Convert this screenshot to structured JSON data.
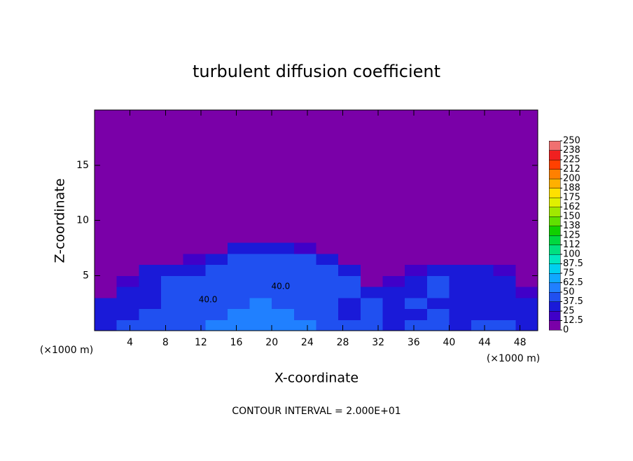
{
  "chart_data": {
    "type": "heatmap",
    "title": "turbulent diffusion coefficient",
    "xlabel": "X-coordinate",
    "ylabel": "Z-coordinate",
    "x_unit_left": "(×1000 m)",
    "x_unit_right": "(×1000 m)",
    "footer": "CONTOUR INTERVAL = 2.000E+01",
    "xlim": [
      0,
      50
    ],
    "ylim": [
      0,
      20
    ],
    "xticks": [
      4,
      8,
      12,
      16,
      20,
      24,
      28,
      32,
      36,
      40,
      44,
      48
    ],
    "yticks": [
      5,
      10,
      15
    ],
    "x_edges": [
      0,
      2.5,
      5,
      7.5,
      10,
      12.5,
      15,
      17.5,
      20,
      22.5,
      25,
      27.5,
      30,
      32.5,
      35,
      37.5,
      40,
      42.5,
      45,
      47.5,
      50
    ],
    "y_edges": [
      0,
      1,
      2,
      3,
      4,
      5,
      6,
      7,
      8,
      20
    ],
    "z": [
      [
        35,
        38,
        40,
        42,
        45,
        50,
        58,
        62,
        55,
        50,
        42,
        40,
        38,
        36,
        40,
        38,
        35,
        40,
        38,
        35
      ],
      [
        30,
        35,
        38,
        40,
        42,
        45,
        50,
        55,
        50,
        45,
        40,
        35,
        38,
        30,
        35,
        38,
        32,
        35,
        30,
        30
      ],
      [
        25,
        32,
        35,
        38,
        40,
        42,
        45,
        50,
        45,
        42,
        38,
        35,
        38,
        28,
        38,
        35,
        35,
        32,
        30,
        25
      ],
      [
        10,
        30,
        35,
        38,
        38,
        40,
        42,
        48,
        42,
        40,
        38,
        38,
        30,
        32,
        30,
        40,
        35,
        35,
        30,
        20
      ],
      [
        5,
        20,
        35,
        38,
        38,
        38,
        40,
        45,
        40,
        40,
        38,
        38,
        10,
        20,
        30,
        38,
        32,
        30,
        30,
        10
      ],
      [
        2,
        10,
        35,
        35,
        35,
        38,
        40,
        42,
        38,
        40,
        38,
        30,
        5,
        5,
        20,
        25,
        25,
        30,
        20,
        5
      ],
      [
        0,
        2,
        5,
        10,
        20,
        35,
        38,
        40,
        38,
        38,
        30,
        5,
        0,
        0,
        2,
        5,
        10,
        10,
        5,
        0
      ],
      [
        0,
        0,
        0,
        0,
        2,
        10,
        30,
        35,
        30,
        20,
        5,
        0,
        0,
        0,
        0,
        0,
        0,
        0,
        0,
        0
      ],
      [
        0,
        0,
        0,
        0,
        0,
        0,
        0,
        0,
        0,
        0,
        0,
        0,
        0,
        0,
        0,
        0,
        0,
        0,
        0,
        0
      ]
    ],
    "contour_labels": [
      {
        "x": 12.8,
        "y": 2.8,
        "label": "40.0"
      },
      {
        "x": 21,
        "y": 4,
        "label": "40.0"
      }
    ],
    "colorbar": {
      "ticks": [
        0,
        12.5,
        25,
        37.5,
        50,
        62.5,
        75,
        87.5,
        100,
        {
          "value": 112.5,
          "label": "112"
        },
        125,
        {
          "value": 137.5,
          "label": "138"
        },
        150,
        {
          "value": 162.5,
          "label": "162"
        },
        175,
        {
          "value": 187.5,
          "label": "188"
        },
        200,
        {
          "value": 212.5,
          "label": "212"
        },
        225,
        {
          "value": 237.5,
          "label": "238"
        },
        250
      ],
      "colors": [
        "#7a00a8",
        "#4000c8",
        "#1a1ad8",
        "#2050f0",
        "#2080ff",
        "#10a8ff",
        "#00d0f0",
        "#00e8c0",
        "#00e080",
        "#00d840",
        "#10d000",
        "#60e000",
        "#a0e800",
        "#e0f000",
        "#ffe000",
        "#ffb000",
        "#ff8000",
        "#ff4000",
        "#f02020",
        "#f07070"
      ]
    }
  }
}
